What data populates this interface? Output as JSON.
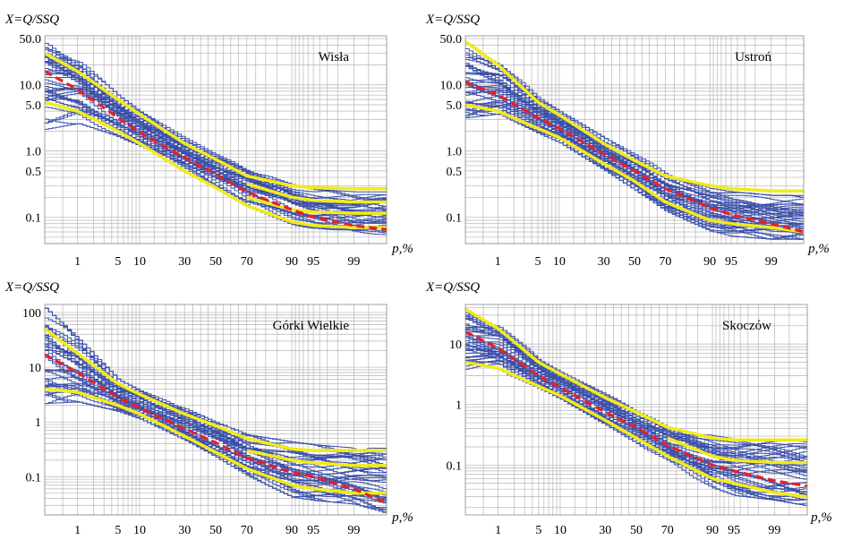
{
  "chart_data": [
    {
      "type": "line",
      "title": "Wisła",
      "ylabel": "X=Q/SSQ",
      "xlabel": "p,%",
      "yscale": "log",
      "xscale": "normal-probability",
      "ylim": [
        0.04,
        55
      ],
      "ytick_labels": [
        "50.0",
        "10.0",
        "5.0",
        "1.0",
        "0.5",
        "0.1"
      ],
      "ytick_values": [
        50,
        10,
        5,
        1,
        0.5,
        0.1
      ],
      "xtick_labels": [
        "1",
        "5",
        "10",
        "30",
        "50",
        "70",
        "90",
        "95",
        "99"
      ],
      "xtick_values": [
        1,
        5,
        10,
        30,
        50,
        70,
        90,
        95,
        99
      ],
      "grid": true,
      "series": [
        {
          "role": "annual-curves",
          "color": "#3a4fa8",
          "count": 40,
          "x": [
            0.2,
            1,
            5,
            10,
            30,
            50,
            70,
            90,
            95,
            99,
            99.8
          ],
          "y_min": [
            2.0,
            2.5,
            1.6,
            1.1,
            0.5,
            0.27,
            0.14,
            0.075,
            0.065,
            0.05,
            0.05
          ],
          "y_max": [
            45,
            25,
            7.0,
            4.0,
            1.6,
            0.9,
            0.55,
            0.32,
            0.27,
            0.25,
            0.25
          ]
        },
        {
          "role": "envelope-upper",
          "color": "#f2ea1d",
          "x": [
            0.2,
            1,
            5,
            10,
            30,
            50,
            70,
            90,
            95,
            99,
            99.8
          ],
          "y": [
            30,
            16,
            6.0,
            3.6,
            1.3,
            0.75,
            0.42,
            0.3,
            0.28,
            0.27,
            0.27
          ]
        },
        {
          "role": "envelope-lower",
          "color": "#f2ea1d",
          "x": [
            0.2,
            1,
            5,
            10,
            30,
            50,
            70,
            90,
            95,
            99,
            99.8
          ],
          "y": [
            5.5,
            4.0,
            2.0,
            1.3,
            0.5,
            0.28,
            0.15,
            0.085,
            0.075,
            0.07,
            0.07
          ]
        },
        {
          "role": "envelope-inner-upper",
          "color": "#f2ea1d",
          "x": [
            70,
            90,
            95,
            99,
            99.8
          ],
          "y": [
            0.32,
            0.2,
            0.18,
            0.17,
            0.17
          ]
        },
        {
          "role": "envelope-inner-lower",
          "color": "#f2ea1d",
          "x": [
            70,
            90,
            95,
            99,
            99.8
          ],
          "y": [
            0.2,
            0.13,
            0.12,
            0.115,
            0.115
          ]
        },
        {
          "role": "median",
          "color": "#e8202a",
          "x": [
            0.2,
            1,
            5,
            10,
            30,
            50,
            70,
            90,
            95,
            99,
            99.8
          ],
          "y": [
            16,
            8.5,
            3.2,
            1.9,
            0.8,
            0.45,
            0.24,
            0.13,
            0.1,
            0.075,
            0.065
          ]
        }
      ]
    },
    {
      "type": "line",
      "title": "Ustroń",
      "ylabel": "X=Q/SSQ",
      "xlabel": "p,%",
      "yscale": "log",
      "xscale": "normal-probability",
      "ylim": [
        0.04,
        55
      ],
      "ytick_labels": [
        "50.0",
        "10.0",
        "5.0",
        "1.0",
        "0.5",
        "0.1"
      ],
      "ytick_values": [
        50,
        10,
        5,
        1,
        0.5,
        0.1
      ],
      "xtick_labels": [
        "1",
        "5",
        "10",
        "30",
        "50",
        "70",
        "90",
        "95",
        "99"
      ],
      "xtick_values": [
        1,
        5,
        10,
        30,
        50,
        70,
        90,
        95,
        99
      ],
      "grid": true,
      "series": [
        {
          "role": "annual-curves",
          "color": "#3a4fa8",
          "count": 40,
          "x": [
            0.2,
            1,
            5,
            10,
            30,
            50,
            70,
            90,
            95,
            99,
            99.8
          ],
          "y_min": [
            3.0,
            3.5,
            1.8,
            1.3,
            0.5,
            0.25,
            0.12,
            0.06,
            0.05,
            0.045,
            0.045
          ],
          "y_max": [
            45,
            25,
            6.5,
            4.0,
            1.6,
            0.9,
            0.5,
            0.28,
            0.25,
            0.22,
            0.22
          ]
        },
        {
          "role": "envelope-upper",
          "color": "#f2ea1d",
          "x": [
            0.2,
            1,
            5,
            10,
            30,
            50,
            70,
            90,
            95,
            99,
            99.8
          ],
          "y": [
            45,
            20,
            5.5,
            3.5,
            1.3,
            0.72,
            0.42,
            0.3,
            0.27,
            0.25,
            0.25
          ]
        },
        {
          "role": "envelope-lower",
          "color": "#f2ea1d",
          "x": [
            0.2,
            1,
            5,
            10,
            30,
            50,
            70,
            90,
            95,
            99,
            99.8
          ],
          "y": [
            5.0,
            4.0,
            2.2,
            1.6,
            0.65,
            0.35,
            0.17,
            0.09,
            0.08,
            0.07,
            0.06
          ]
        },
        {
          "role": "median",
          "color": "#e8202a",
          "x": [
            0.2,
            1,
            5,
            10,
            30,
            50,
            70,
            90,
            95,
            99,
            99.8
          ],
          "y": [
            11,
            7.0,
            3.2,
            2.2,
            0.9,
            0.5,
            0.27,
            0.14,
            0.11,
            0.08,
            0.06
          ]
        }
      ]
    },
    {
      "type": "line",
      "title": "Górki Wielkie",
      "ylabel": "X=Q/SSQ",
      "xlabel": "p,%",
      "yscale": "log",
      "xscale": "normal-probability",
      "ylim": [
        0.02,
        140
      ],
      "ytick_labels": [
        "100",
        "10",
        "1",
        "0.1"
      ],
      "ytick_values": [
        100,
        10,
        1,
        0.1
      ],
      "xtick_labels": [
        "1",
        "5",
        "10",
        "30",
        "50",
        "70",
        "90",
        "95",
        "99"
      ],
      "xtick_values": [
        1,
        5,
        10,
        30,
        50,
        70,
        90,
        95,
        99
      ],
      "grid": true,
      "series": [
        {
          "role": "annual-curves",
          "color": "#3a4fa8",
          "count": 40,
          "x": [
            0.2,
            1,
            5,
            10,
            30,
            50,
            70,
            90,
            95,
            99,
            99.8
          ],
          "y_min": [
            2.0,
            2.2,
            1.5,
            1.1,
            0.45,
            0.22,
            0.1,
            0.04,
            0.035,
            0.03,
            0.02
          ],
          "y_max": [
            130,
            35,
            6.0,
            3.8,
            1.8,
            1.0,
            0.6,
            0.45,
            0.4,
            0.35,
            0.35
          ]
        },
        {
          "role": "envelope-upper",
          "color": "#f2ea1d",
          "x": [
            0.2,
            1,
            5,
            10,
            30,
            50,
            70,
            90,
            95,
            99,
            99.8
          ],
          "y": [
            50,
            18,
            5.0,
            3.2,
            1.4,
            0.85,
            0.5,
            0.32,
            0.3,
            0.3,
            0.3
          ]
        },
        {
          "role": "envelope-lower",
          "color": "#f2ea1d",
          "x": [
            0.2,
            1,
            5,
            10,
            30,
            50,
            70,
            90,
            95,
            99,
            99.8
          ],
          "y": [
            4.0,
            3.5,
            2.0,
            1.4,
            0.55,
            0.28,
            0.14,
            0.07,
            0.06,
            0.05,
            0.05
          ]
        },
        {
          "role": "envelope-inner",
          "color": "#f2ea1d",
          "x": [
            70,
            90,
            95,
            99,
            99.8
          ],
          "y": [
            0.3,
            0.2,
            0.18,
            0.16,
            0.16
          ]
        },
        {
          "role": "median",
          "color": "#e8202a",
          "x": [
            0.2,
            1,
            5,
            10,
            30,
            50,
            70,
            90,
            95,
            99,
            99.8
          ],
          "y": [
            17,
            8.0,
            2.8,
            1.8,
            0.75,
            0.42,
            0.22,
            0.12,
            0.1,
            0.06,
            0.033
          ]
        }
      ]
    },
    {
      "type": "line",
      "title": "Skoczów",
      "ylabel": "X=Q/SSQ",
      "xlabel": "p,%",
      "yscale": "log",
      "xscale": "normal-probability",
      "ylim": [
        0.015,
        45
      ],
      "ytick_labels": [
        "10",
        "1",
        "0.1"
      ],
      "ytick_values": [
        10,
        1,
        0.1
      ],
      "xtick_labels": [
        "1",
        "5",
        "10",
        "30",
        "50",
        "70",
        "90",
        "95",
        "99"
      ],
      "xtick_values": [
        1,
        5,
        10,
        30,
        50,
        70,
        90,
        95,
        99
      ],
      "grid": true,
      "series": [
        {
          "role": "annual-curves",
          "color": "#3a4fa8",
          "count": 40,
          "x": [
            0.2,
            1,
            5,
            10,
            30,
            50,
            70,
            90,
            95,
            99,
            99.8
          ],
          "y_min": [
            3.5,
            3.5,
            1.8,
            1.2,
            0.45,
            0.22,
            0.1,
            0.04,
            0.03,
            0.025,
            0.02
          ],
          "y_max": [
            40,
            25,
            5.5,
            3.5,
            1.5,
            0.85,
            0.5,
            0.32,
            0.28,
            0.27,
            0.27
          ]
        },
        {
          "role": "envelope-upper",
          "color": "#f2ea1d",
          "x": [
            0.2,
            1,
            5,
            10,
            30,
            50,
            70,
            90,
            95,
            99,
            99.8
          ],
          "y": [
            38,
            18,
            5.0,
            3.2,
            1.3,
            0.75,
            0.42,
            0.28,
            0.26,
            0.26,
            0.26
          ]
        },
        {
          "role": "envelope-lower",
          "color": "#f2ea1d",
          "x": [
            0.2,
            1,
            5,
            10,
            30,
            50,
            70,
            90,
            95,
            99,
            99.8
          ],
          "y": [
            5.0,
            4.0,
            2.0,
            1.4,
            0.55,
            0.28,
            0.14,
            0.06,
            0.05,
            0.035,
            0.03
          ]
        },
        {
          "role": "envelope-inner",
          "color": "#f2ea1d",
          "x": [
            70,
            90,
            95,
            99,
            99.8
          ],
          "y": [
            0.28,
            0.14,
            0.12,
            0.11,
            0.11
          ]
        },
        {
          "role": "median",
          "color": "#e8202a",
          "x": [
            0.2,
            1,
            5,
            10,
            30,
            50,
            70,
            90,
            95,
            99,
            99.8
          ],
          "y": [
            16,
            8.5,
            3.0,
            1.9,
            0.75,
            0.42,
            0.21,
            0.1,
            0.08,
            0.055,
            0.045
          ]
        }
      ]
    }
  ]
}
